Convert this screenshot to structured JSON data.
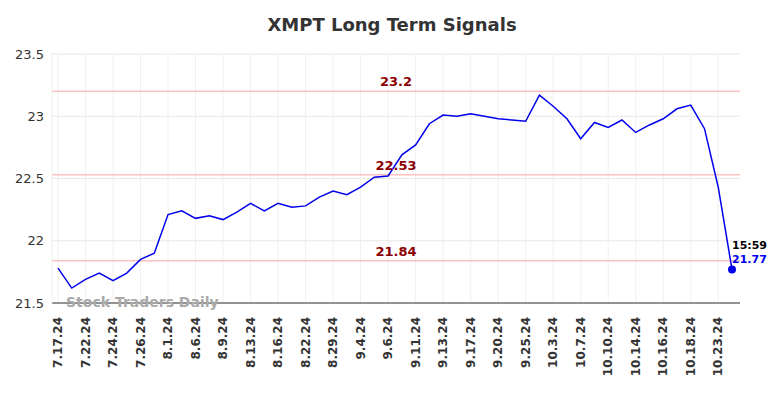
{
  "chart_data": {
    "type": "line",
    "title": "XMPT Long Term Signals",
    "watermark": "Stock Traders Daily",
    "categories": [
      "7.17.24",
      null,
      "7.22.24",
      null,
      "7.24.24",
      null,
      "7.26.24",
      null,
      "8.1.24",
      null,
      "8.6.24",
      null,
      "8.9.24",
      null,
      "8.13.24",
      null,
      "8.16.24",
      null,
      "8.22.24",
      null,
      "8.29.24",
      null,
      "9.4.24",
      null,
      "9.6.24",
      null,
      "9.11.24",
      null,
      "9.13.24",
      null,
      "9.17.24",
      null,
      "9.20.24",
      null,
      "9.25.24",
      null,
      "10.3.24",
      null,
      "10.7.24",
      null,
      "10.10.24",
      null,
      "10.14.24",
      null,
      "10.16.24",
      null,
      "10.18.24",
      null,
      "10.23.24",
      null
    ],
    "values": [
      21.78,
      21.62,
      21.69,
      21.74,
      21.68,
      21.74,
      21.85,
      21.9,
      22.21,
      22.24,
      22.18,
      22.2,
      22.17,
      22.23,
      22.3,
      22.24,
      22.3,
      22.27,
      22.28,
      22.35,
      22.4,
      22.37,
      22.43,
      22.51,
      22.52,
      22.69,
      22.77,
      22.94,
      23.01,
      23.0,
      23.02,
      23.0,
      22.98,
      22.97,
      22.96,
      23.17,
      23.08,
      22.98,
      22.82,
      22.95,
      22.91,
      22.97,
      22.87,
      22.93,
      22.98,
      23.06,
      23.09,
      22.9,
      22.43,
      21.77
    ],
    "color": "#0000ee",
    "ylim": [
      21.5,
      23.5
    ],
    "yticks": [
      21.5,
      22,
      22.5,
      23,
      23.5
    ],
    "grid": true,
    "levels": [
      23.2,
      22.53,
      21.84
    ],
    "last_point_label": {
      "time": "15:59",
      "value": 21.77
    }
  }
}
